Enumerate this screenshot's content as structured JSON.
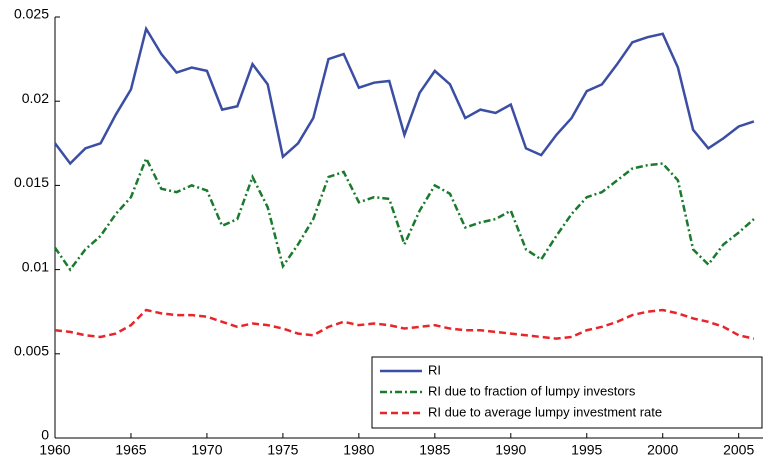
{
  "chart_data": {
    "type": "line",
    "x": [
      1960,
      1961,
      1962,
      1963,
      1964,
      1965,
      1966,
      1967,
      1968,
      1969,
      1970,
      1971,
      1972,
      1973,
      1974,
      1975,
      1976,
      1977,
      1978,
      1979,
      1980,
      1981,
      1982,
      1983,
      1984,
      1985,
      1986,
      1987,
      1988,
      1989,
      1990,
      1991,
      1992,
      1993,
      1994,
      1995,
      1996,
      1997,
      1998,
      1999,
      2000,
      2001,
      2002,
      2003,
      2004,
      2005,
      2006
    ],
    "series": [
      {
        "name": "RI",
        "color": "#3b4ea3",
        "dash": "solid",
        "values": [
          0.0175,
          0.0163,
          0.0172,
          0.0175,
          0.0192,
          0.0207,
          0.0243,
          0.0228,
          0.0217,
          0.022,
          0.0218,
          0.0195,
          0.0197,
          0.0222,
          0.021,
          0.0167,
          0.0175,
          0.019,
          0.0225,
          0.0228,
          0.0208,
          0.0211,
          0.0212,
          0.018,
          0.0205,
          0.0218,
          0.021,
          0.019,
          0.0195,
          0.0193,
          0.0198,
          0.0172,
          0.0168,
          0.018,
          0.019,
          0.0206,
          0.021,
          0.0222,
          0.0235,
          0.0238,
          0.024,
          0.022,
          0.0183,
          0.0172,
          0.0178,
          0.0185,
          0.0188
        ]
      },
      {
        "name": "RI due to fraction of lumpy investors",
        "color": "#1a7a2e",
        "dash": "dashdot",
        "values": [
          0.0113,
          0.01,
          0.0112,
          0.012,
          0.0133,
          0.0143,
          0.0166,
          0.0148,
          0.0146,
          0.015,
          0.0147,
          0.0126,
          0.013,
          0.0155,
          0.0137,
          0.0102,
          0.0115,
          0.013,
          0.0155,
          0.0158,
          0.014,
          0.0143,
          0.0142,
          0.0115,
          0.0135,
          0.015,
          0.0145,
          0.0125,
          0.0128,
          0.013,
          0.0135,
          0.0112,
          0.0106,
          0.012,
          0.0133,
          0.0143,
          0.0146,
          0.0153,
          0.016,
          0.0162,
          0.0163,
          0.0153,
          0.0112,
          0.0103,
          0.0115,
          0.0122,
          0.013
        ]
      },
      {
        "name": "RI due to average lumpy investment rate",
        "color": "#e8252a",
        "dash": "dashed",
        "values": [
          0.0064,
          0.0063,
          0.0061,
          0.006,
          0.0062,
          0.0067,
          0.0076,
          0.0074,
          0.0073,
          0.0073,
          0.0072,
          0.0069,
          0.0066,
          0.0068,
          0.0067,
          0.0065,
          0.0062,
          0.0061,
          0.0066,
          0.0069,
          0.0067,
          0.0068,
          0.0067,
          0.0065,
          0.0066,
          0.0067,
          0.0065,
          0.0064,
          0.0064,
          0.0063,
          0.0062,
          0.0061,
          0.006,
          0.0059,
          0.006,
          0.0064,
          0.0066,
          0.0069,
          0.0073,
          0.0075,
          0.0076,
          0.0074,
          0.0071,
          0.0069,
          0.0066,
          0.0061,
          0.0059
        ]
      }
    ],
    "xlim": [
      1960,
      2006.6
    ],
    "xticks": [
      1960,
      1965,
      1970,
      1975,
      1980,
      1985,
      1990,
      1995,
      2000,
      2005
    ],
    "ylim": [
      0,
      0.025
    ],
    "yticks": [
      0,
      0.005,
      0.01,
      0.015,
      0.02,
      0.025
    ],
    "legend": "lower right"
  }
}
